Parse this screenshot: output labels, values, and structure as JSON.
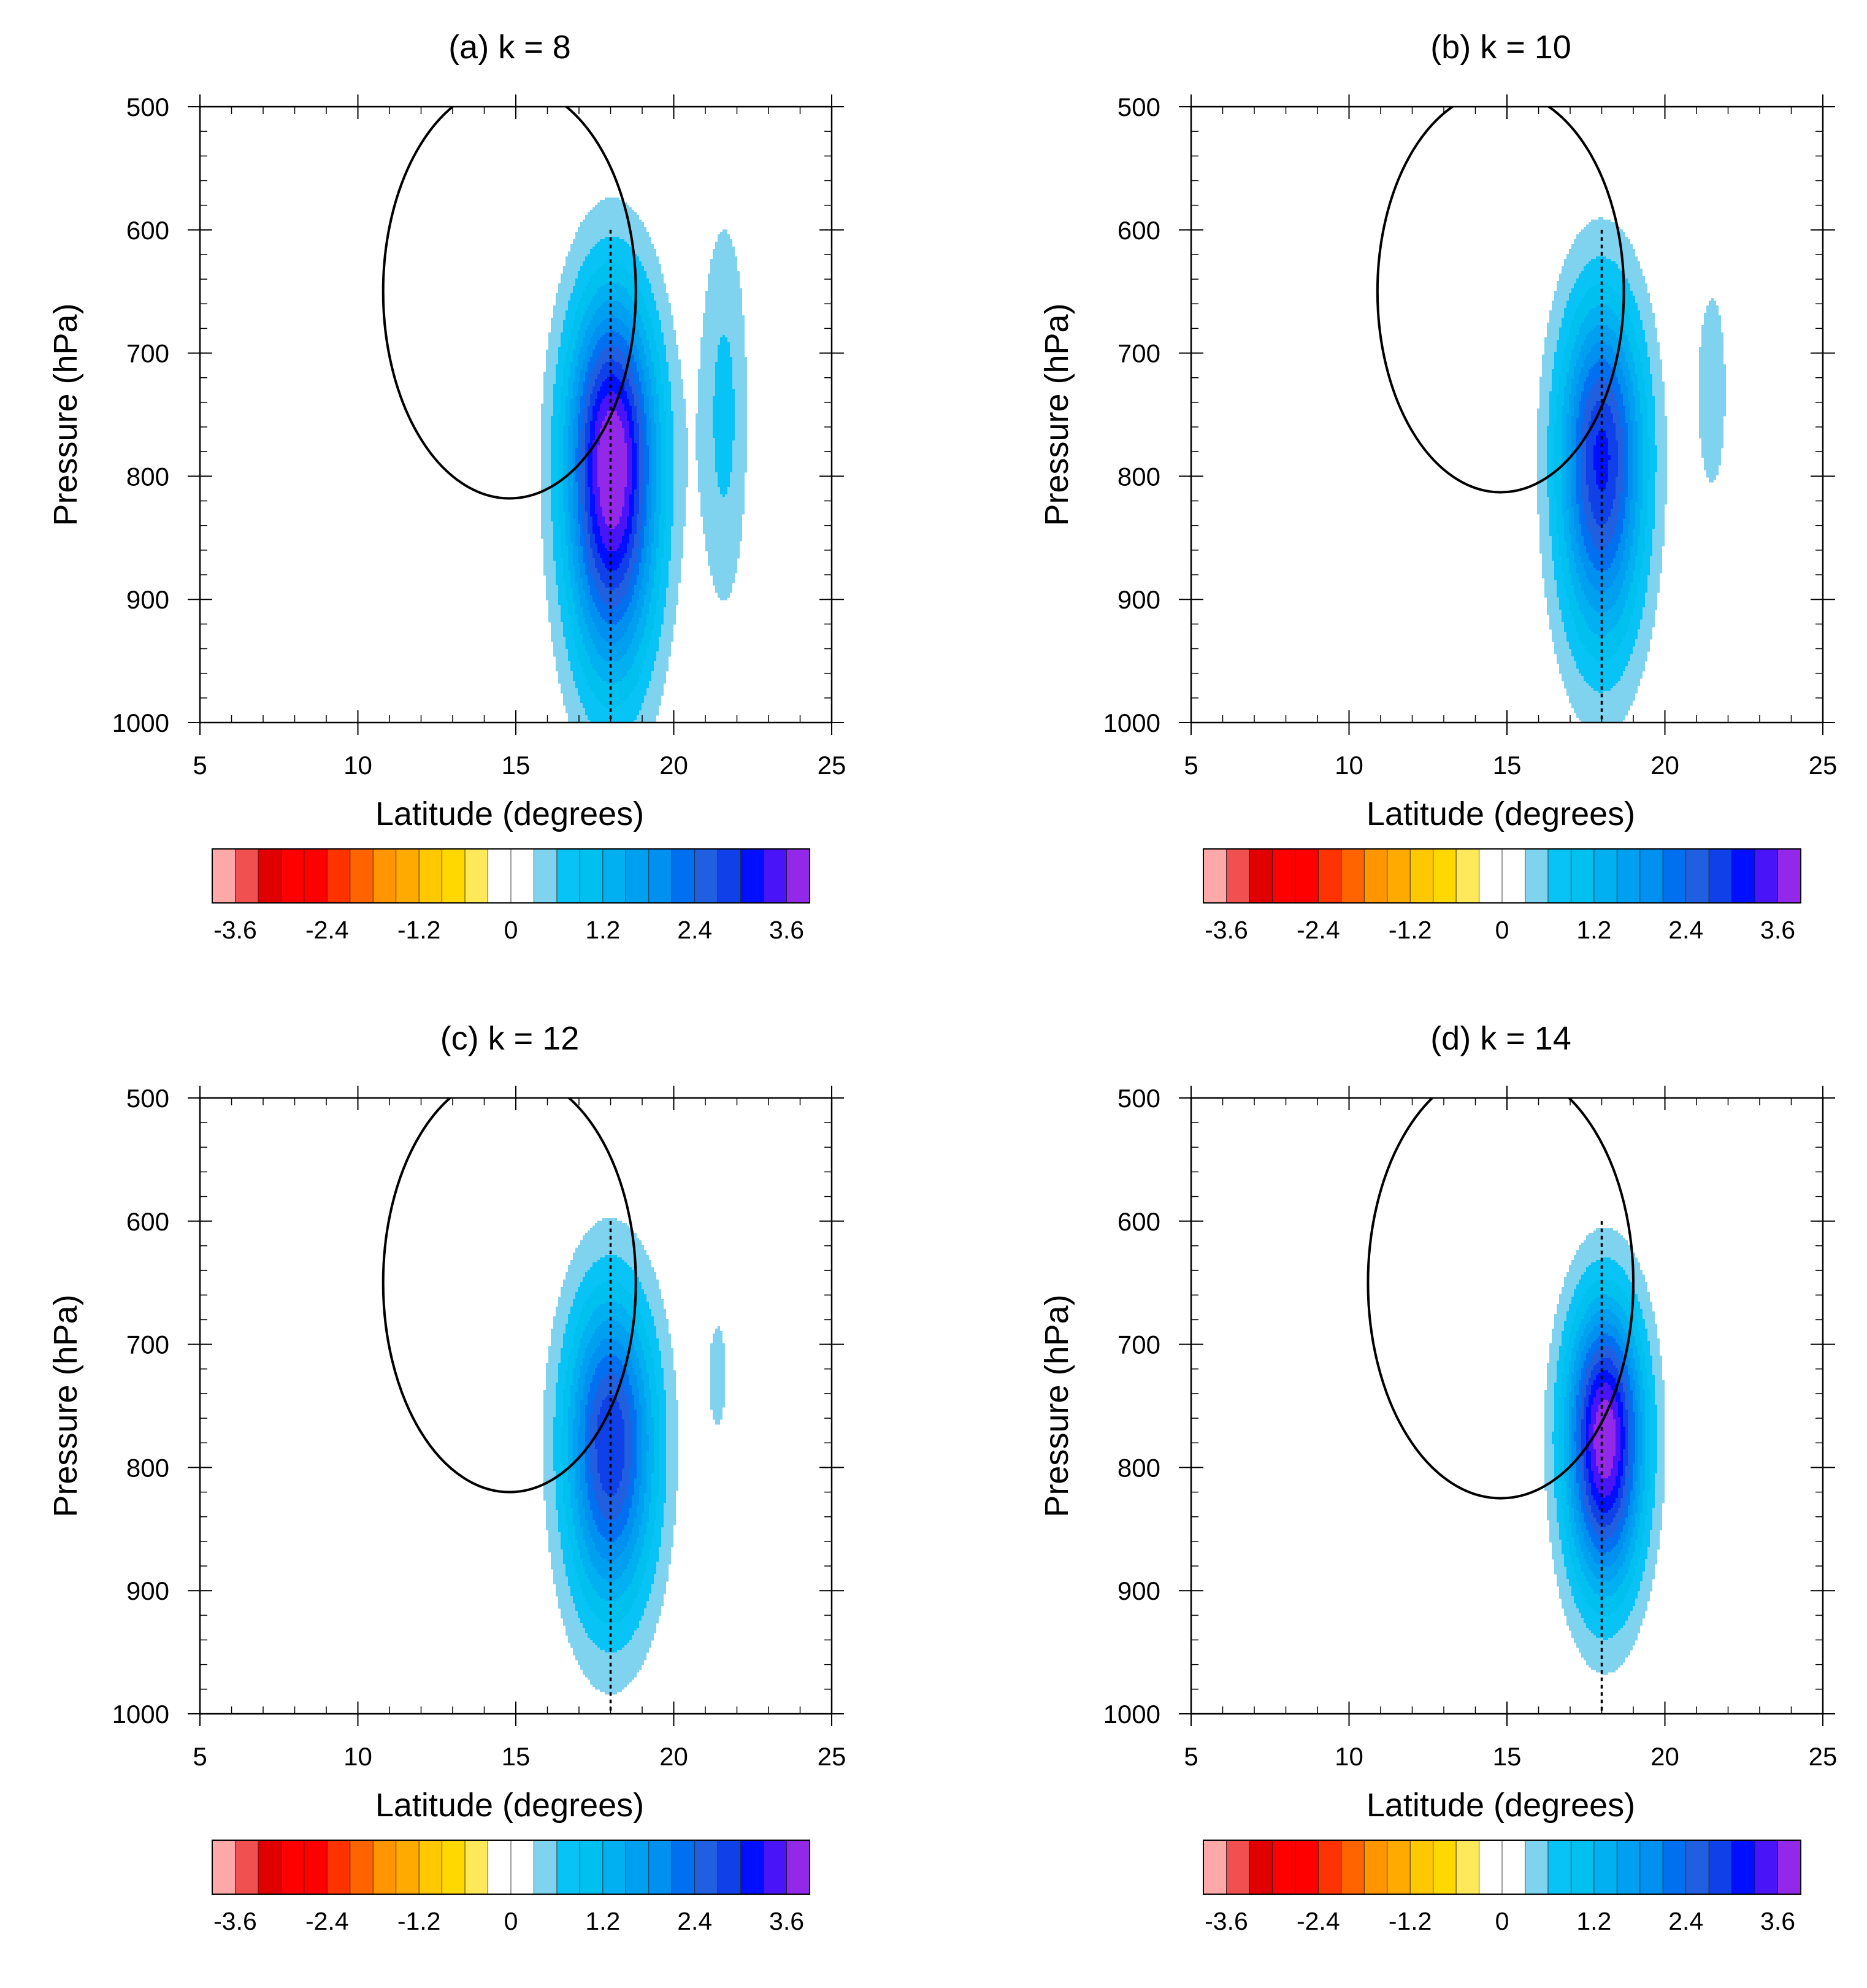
{
  "chart_data": [
    {
      "type": "contour",
      "panel": "a",
      "title": "(a) k = 8",
      "xlabel": "Latitude (degrees)",
      "ylabel": "Pressure (hPa)",
      "xlim": [
        5,
        25
      ],
      "ylim": [
        1000,
        500
      ],
      "xticks": [
        5,
        10,
        15,
        20,
        25
      ],
      "yticks": [
        500,
        600,
        700,
        800,
        900,
        1000
      ],
      "reference_line": {
        "style": "dotted",
        "x": 18,
        "y_range": [
          600,
          1000
        ]
      },
      "circulation_contour": {
        "center_lat": 14.8,
        "center_p": 650,
        "lat_halfwidth": 4.0,
        "p_halfheight": 168
      },
      "primary_anomaly": {
        "center_lat": 18.05,
        "center_p": 790,
        "peak": 4.0,
        "sigma_lat": 1.0,
        "sigma_p_above": 95,
        "sigma_p_below": 115
      },
      "secondary_anomaly": {
        "center_lat": 21.6,
        "center_p": 750,
        "peak": 0.7,
        "sigma_lat": 0.55,
        "sigma_p": 115
      },
      "colorbar": {
        "tick_labels": [
          "-3.6",
          "-2.4",
          "-1.2",
          "0",
          "1.2",
          "2.4",
          "3.6"
        ],
        "tick_values": [
          -3.6,
          -2.4,
          -1.2,
          0,
          1.2,
          2.4,
          3.6
        ]
      }
    },
    {
      "type": "contour",
      "panel": "b",
      "title": "(b) k = 10",
      "xlabel": "Latitude (degrees)",
      "ylabel": "Pressure (hPa)",
      "xlim": [
        5,
        25
      ],
      "ylim": [
        1000,
        500
      ],
      "xticks": [
        5,
        10,
        15,
        20,
        25
      ],
      "yticks": [
        500,
        600,
        700,
        800,
        900,
        1000
      ],
      "reference_line": {
        "style": "dotted",
        "x": 18,
        "y_range": [
          600,
          1000
        ]
      },
      "circulation_contour": {
        "center_lat": 14.8,
        "center_p": 650,
        "lat_halfwidth": 3.9,
        "p_halfheight": 163
      },
      "primary_anomaly": {
        "center_lat": 18.0,
        "center_p": 785,
        "peak": 3.1,
        "sigma_lat": 0.95,
        "sigma_p_above": 90,
        "sigma_p_below": 105
      },
      "secondary_anomaly": {
        "center_lat": 21.5,
        "center_p": 730,
        "peak": 0.42,
        "sigma_lat": 0.5,
        "sigma_p": 90
      },
      "colorbar": {
        "tick_labels": [
          "-3.6",
          "-2.4",
          "-1.2",
          "0",
          "1.2",
          "2.4",
          "3.6"
        ],
        "tick_values": [
          -3.6,
          -2.4,
          -1.2,
          0,
          1.2,
          2.4,
          3.6
        ]
      }
    },
    {
      "type": "contour",
      "panel": "c",
      "title": "(c) k = 12",
      "xlabel": "Latitude (degrees)",
      "ylabel": "Pressure (hPa)",
      "xlim": [
        5,
        25
      ],
      "ylim": [
        1000,
        500
      ],
      "xticks": [
        5,
        10,
        15,
        20,
        25
      ],
      "yticks": [
        500,
        600,
        700,
        800,
        900,
        1000
      ],
      "reference_line": {
        "style": "dotted",
        "x": 18,
        "y_range": [
          600,
          1000
        ]
      },
      "circulation_contour": {
        "center_lat": 14.8,
        "center_p": 650,
        "lat_halfwidth": 4.0,
        "p_halfheight": 170
      },
      "primary_anomaly": {
        "center_lat": 18.0,
        "center_p": 780,
        "peak": 3.0,
        "sigma_lat": 1.0,
        "sigma_p_above": 85,
        "sigma_p_below": 95
      },
      "secondary_anomaly": {
        "center_lat": 21.4,
        "center_p": 725,
        "peak": 0.38,
        "sigma_lat": 0.35,
        "sigma_p": 55
      },
      "colorbar": {
        "tick_labels": [
          "-3.6",
          "-2.4",
          "-1.2",
          "0",
          "1.2",
          "2.4",
          "3.6"
        ],
        "tick_values": [
          -3.6,
          -2.4,
          -1.2,
          0,
          1.2,
          2.4,
          3.6
        ]
      }
    },
    {
      "type": "contour",
      "panel": "d",
      "title": "(d) k = 14",
      "xlabel": "Latitude (degrees)",
      "ylabel": "Pressure (hPa)",
      "xlim": [
        5,
        25
      ],
      "ylim": [
        1000,
        500
      ],
      "xticks": [
        5,
        10,
        15,
        20,
        25
      ],
      "yticks": [
        500,
        600,
        700,
        800,
        900,
        1000
      ],
      "reference_line": {
        "style": "dotted",
        "x": 18,
        "y_range": [
          600,
          1000
        ]
      },
      "circulation_contour": {
        "center_lat": 14.8,
        "center_p": 650,
        "lat_halfwidth": 4.2,
        "p_halfheight": 175
      },
      "primary_anomaly": {
        "center_lat": 18.1,
        "center_p": 775,
        "peak": 3.9,
        "sigma_lat": 0.85,
        "sigma_p_above": 75,
        "sigma_p_below": 85
      },
      "secondary_anomaly": null,
      "colorbar": {
        "tick_labels": [
          "-3.6",
          "-2.4",
          "-1.2",
          "0",
          "1.2",
          "2.4",
          "3.6"
        ],
        "tick_values": [
          -3.6,
          -2.4,
          -1.2,
          0,
          1.2,
          2.4,
          3.6
        ]
      }
    }
  ],
  "colorscale": {
    "levels": [
      -3.6,
      -3.3,
      -3.0,
      -2.7,
      -2.4,
      -2.1,
      -1.8,
      -1.5,
      -1.2,
      -0.9,
      -0.6,
      -0.3,
      0,
      0.3,
      0.6,
      0.9,
      1.2,
      1.5,
      1.8,
      2.1,
      2.4,
      2.7,
      3.0,
      3.3,
      3.6
    ],
    "colors": [
      "#ffa8a8",
      "#f05050",
      "#e00000",
      "#ff0000",
      "#ff0000",
      "#ff3300",
      "#ff6400",
      "#ff9600",
      "#ffaa00",
      "#ffc800",
      "#ffd800",
      "#ffe85a",
      "#ffffff",
      "#ffffff",
      "#7fd3ef",
      "#08c3f5",
      "#00c0f0",
      "#00b0f0",
      "#00a0f0",
      "#0090f0",
      "#0070f0",
      "#2060e0",
      "#1040e8",
      "#0010ff",
      "#4a14f8",
      "#9428e8"
    ]
  }
}
